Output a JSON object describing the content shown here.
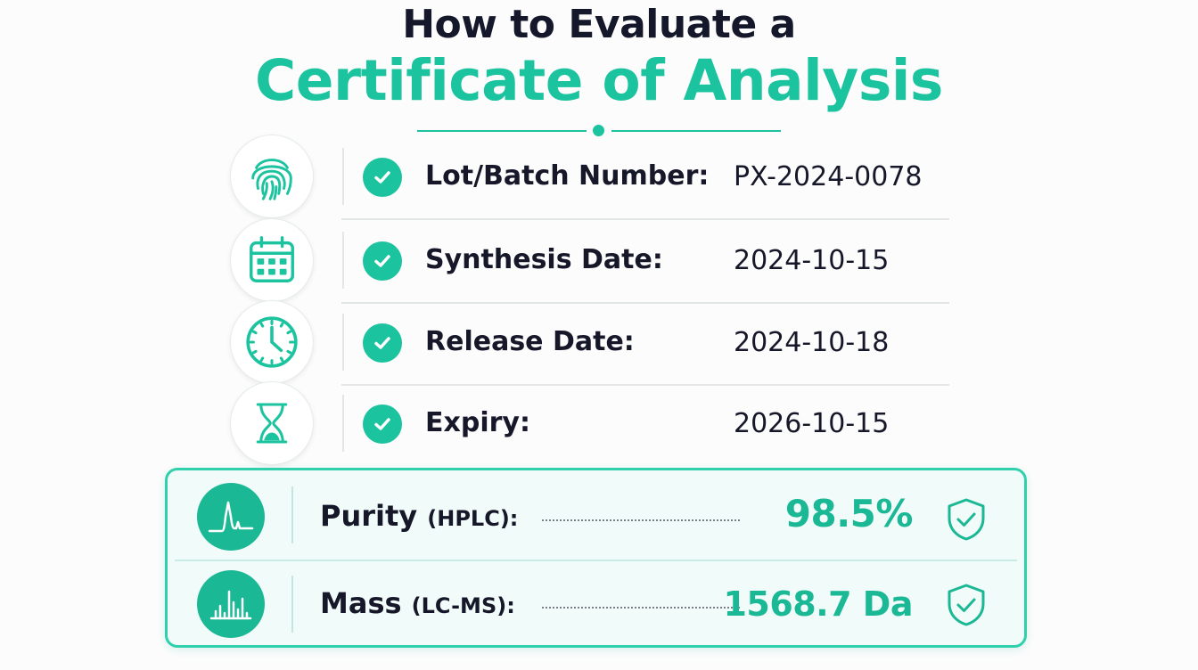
{
  "title": {
    "line1": "How to Evaluate a",
    "line2": "Certificate of Analysis"
  },
  "colors": {
    "accent": "#1cc39f",
    "dark_text": "#16182a"
  },
  "details": [
    {
      "icon": "fingerprint-icon",
      "label": "Lot/Batch Number:",
      "value": "PX-2024-0078"
    },
    {
      "icon": "calendar-icon",
      "label": "Synthesis Date:",
      "value": "2024-10-15"
    },
    {
      "icon": "clock-icon",
      "label": "Release Date:",
      "value": "2024-10-18"
    },
    {
      "icon": "hourglass-icon",
      "label": "Expiry:",
      "value": "2026-10-15"
    }
  ],
  "results": [
    {
      "icon": "chromatogram-peak-icon",
      "label": "Purity",
      "method": "(HPLC):",
      "value": "98.5%",
      "status_icon": "shield-check-icon"
    },
    {
      "icon": "mass-spectrum-icon",
      "label": "Mass",
      "method": "(LC-MS):",
      "value": "1568.7 Da",
      "status_icon": "shield-check-icon"
    }
  ]
}
